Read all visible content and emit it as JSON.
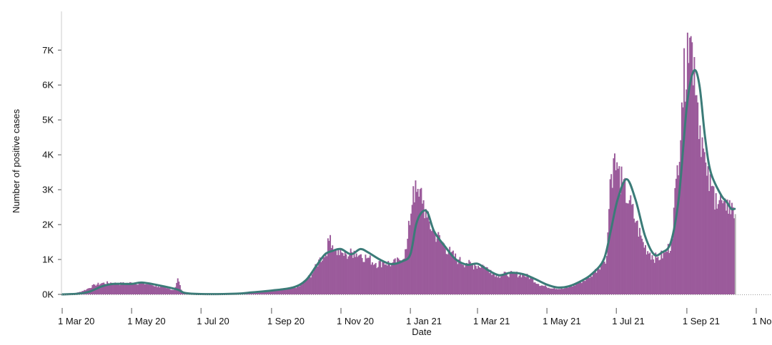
{
  "chart_data": {
    "type": "bar",
    "xlabel": "Date",
    "ylabel": "Number of positive cases",
    "x_start": "2020-03-01",
    "x_end": "2021-11-01",
    "ylim": [
      0,
      7700
    ],
    "yticks": [
      {
        "value": 0,
        "label": "0K"
      },
      {
        "value": 1000,
        "label": "1K"
      },
      {
        "value": 2000,
        "label": "2K"
      },
      {
        "value": 3000,
        "label": "3K"
      },
      {
        "value": 4000,
        "label": "4K"
      },
      {
        "value": 5000,
        "label": "5K"
      },
      {
        "value": 6000,
        "label": "6K"
      },
      {
        "value": 7000,
        "label": "7K"
      }
    ],
    "xticks": [
      {
        "date": "2020-03-01",
        "label": "1 Mar 20"
      },
      {
        "date": "2020-05-01",
        "label": "1 May 20"
      },
      {
        "date": "2020-07-01",
        "label": "1 Jul 20"
      },
      {
        "date": "2020-09-01",
        "label": "1 Sep 20"
      },
      {
        "date": "2020-11-01",
        "label": "1 Nov 20"
      },
      {
        "date": "2021-01-01",
        "label": "1 Jan 21"
      },
      {
        "date": "2021-03-01",
        "label": "1 Mar 21"
      },
      {
        "date": "2021-05-01",
        "label": "1 May 21"
      },
      {
        "date": "2021-07-01",
        "label": "1 Jul 21"
      },
      {
        "date": "2021-09-01",
        "label": "1 Sep 21"
      },
      {
        "date": "2021-11-01",
        "label": "1 No"
      }
    ],
    "colors": {
      "bars": "#9b5b9b",
      "trend": "#3b7b78",
      "last_bar": "#b4b4b4"
    },
    "series": [
      {
        "type": "bar",
        "values": [
          [
            "2020-03-01",
            0
          ],
          [
            "2020-03-08",
            20
          ],
          [
            "2020-03-15",
            60
          ],
          [
            "2020-03-22",
            150
          ],
          [
            "2020-03-29",
            280
          ],
          [
            "2020-04-05",
            330
          ],
          [
            "2020-04-12",
            340
          ],
          [
            "2020-04-19",
            310
          ],
          [
            "2020-04-26",
            330
          ],
          [
            "2020-05-03",
            340
          ],
          [
            "2020-05-10",
            320
          ],
          [
            "2020-05-17",
            290
          ],
          [
            "2020-05-24",
            230
          ],
          [
            "2020-05-31",
            180
          ],
          [
            "2020-06-07",
            130
          ],
          [
            "2020-06-10",
            460
          ],
          [
            "2020-06-14",
            50
          ],
          [
            "2020-06-21",
            20
          ],
          [
            "2020-07-01",
            10
          ],
          [
            "2020-07-15",
            10
          ],
          [
            "2020-08-01",
            30
          ],
          [
            "2020-08-15",
            50
          ],
          [
            "2020-09-01",
            120
          ],
          [
            "2020-09-15",
            180
          ],
          [
            "2020-09-25",
            230
          ],
          [
            "2020-10-01",
            420
          ],
          [
            "2020-10-08",
            700
          ],
          [
            "2020-10-12",
            1000
          ],
          [
            "2020-10-18",
            1200
          ],
          [
            "2020-10-22",
            1700
          ],
          [
            "2020-10-26",
            1300
          ],
          [
            "2020-11-01",
            1200
          ],
          [
            "2020-11-05",
            1150
          ],
          [
            "2020-11-12",
            1250
          ],
          [
            "2020-11-18",
            1150
          ],
          [
            "2020-11-25",
            1050
          ],
          [
            "2020-12-01",
            900
          ],
          [
            "2020-12-08",
            950
          ],
          [
            "2020-12-15",
            900
          ],
          [
            "2020-12-22",
            980
          ],
          [
            "2020-12-28",
            1300
          ],
          [
            "2021-01-03",
            3100
          ],
          [
            "2021-01-08",
            2800
          ],
          [
            "2021-01-10",
            3050
          ],
          [
            "2021-01-15",
            2200
          ],
          [
            "2021-01-22",
            1800
          ],
          [
            "2021-01-29",
            1500
          ],
          [
            "2021-02-05",
            1200
          ],
          [
            "2021-02-12",
            1000
          ],
          [
            "2021-02-19",
            900
          ],
          [
            "2021-02-26",
            850
          ],
          [
            "2021-03-05",
            850
          ],
          [
            "2021-03-12",
            700
          ],
          [
            "2021-03-19",
            550
          ],
          [
            "2021-03-26",
            600
          ],
          [
            "2021-04-02",
            600
          ],
          [
            "2021-04-09",
            580
          ],
          [
            "2021-04-16",
            500
          ],
          [
            "2021-04-23",
            300
          ],
          [
            "2021-04-30",
            220
          ],
          [
            "2021-05-07",
            180
          ],
          [
            "2021-05-14",
            160
          ],
          [
            "2021-05-21",
            220
          ],
          [
            "2021-05-28",
            330
          ],
          [
            "2021-06-04",
            450
          ],
          [
            "2021-06-11",
            650
          ],
          [
            "2021-06-18",
            950
          ],
          [
            "2021-06-22",
            1100
          ],
          [
            "2021-06-25",
            3300
          ],
          [
            "2021-06-28",
            3900
          ],
          [
            "2021-07-02",
            3600
          ],
          [
            "2021-07-06",
            3200
          ],
          [
            "2021-07-12",
            2700
          ],
          [
            "2021-07-18",
            2100
          ],
          [
            "2021-07-24",
            1500
          ],
          [
            "2021-07-30",
            1200
          ],
          [
            "2021-08-05",
            1050
          ],
          [
            "2021-08-12",
            1200
          ],
          [
            "2021-08-18",
            1500
          ],
          [
            "2021-08-23",
            3700
          ],
          [
            "2021-08-27",
            5500
          ],
          [
            "2021-09-01",
            7500
          ],
          [
            "2021-09-04",
            7400
          ],
          [
            "2021-09-07",
            6800
          ],
          [
            "2021-09-10",
            5500
          ],
          [
            "2021-09-14",
            4500
          ],
          [
            "2021-09-18",
            3400
          ],
          [
            "2021-09-22",
            3100
          ],
          [
            "2021-09-26",
            2900
          ],
          [
            "2021-10-01",
            2700
          ],
          [
            "2021-10-05",
            2400
          ],
          [
            "2021-10-08",
            2700
          ],
          [
            "2021-10-11",
            2500
          ],
          [
            "2021-10-13",
            2300
          ]
        ]
      },
      {
        "type": "line",
        "values": [
          [
            "2020-03-01",
            0
          ],
          [
            "2020-03-15",
            20
          ],
          [
            "2020-03-25",
            80
          ],
          [
            "2020-04-05",
            230
          ],
          [
            "2020-04-15",
            300
          ],
          [
            "2020-05-01",
            300
          ],
          [
            "2020-05-10",
            340
          ],
          [
            "2020-05-25",
            260
          ],
          [
            "2020-06-10",
            140
          ],
          [
            "2020-06-17",
            40
          ],
          [
            "2020-07-01",
            10
          ],
          [
            "2020-08-01",
            20
          ],
          [
            "2020-08-15",
            60
          ],
          [
            "2020-09-01",
            110
          ],
          [
            "2020-09-20",
            200
          ],
          [
            "2020-10-01",
            400
          ],
          [
            "2020-10-10",
            800
          ],
          [
            "2020-10-18",
            1150
          ],
          [
            "2020-10-25",
            1250
          ],
          [
            "2020-11-01",
            1300
          ],
          [
            "2020-11-10",
            1150
          ],
          [
            "2020-11-18",
            1300
          ],
          [
            "2020-11-25",
            1200
          ],
          [
            "2020-12-05",
            1000
          ],
          [
            "2020-12-15",
            870
          ],
          [
            "2020-12-25",
            950
          ],
          [
            "2021-01-01",
            1150
          ],
          [
            "2021-01-06",
            2000
          ],
          [
            "2021-01-11",
            2350
          ],
          [
            "2021-01-16",
            2350
          ],
          [
            "2021-01-22",
            1800
          ],
          [
            "2021-02-01",
            1350
          ],
          [
            "2021-02-10",
            1000
          ],
          [
            "2021-02-20",
            850
          ],
          [
            "2021-03-01",
            880
          ],
          [
            "2021-03-10",
            700
          ],
          [
            "2021-03-20",
            550
          ],
          [
            "2021-03-30",
            620
          ],
          [
            "2021-04-10",
            580
          ],
          [
            "2021-04-20",
            450
          ],
          [
            "2021-05-01",
            280
          ],
          [
            "2021-05-10",
            200
          ],
          [
            "2021-05-20",
            230
          ],
          [
            "2021-06-01",
            400
          ],
          [
            "2021-06-10",
            600
          ],
          [
            "2021-06-20",
            1000
          ],
          [
            "2021-06-26",
            1800
          ],
          [
            "2021-07-02",
            2700
          ],
          [
            "2021-07-10",
            3300
          ],
          [
            "2021-07-18",
            2700
          ],
          [
            "2021-07-26",
            1700
          ],
          [
            "2021-08-03",
            1150
          ],
          [
            "2021-08-10",
            1200
          ],
          [
            "2021-08-18",
            1500
          ],
          [
            "2021-08-25",
            2800
          ],
          [
            "2021-09-01",
            5400
          ],
          [
            "2021-09-07",
            6400
          ],
          [
            "2021-09-12",
            6000
          ],
          [
            "2021-09-17",
            4500
          ],
          [
            "2021-09-22",
            3500
          ],
          [
            "2021-10-01",
            2850
          ],
          [
            "2021-10-06",
            2650
          ],
          [
            "2021-10-10",
            2450
          ],
          [
            "2021-10-13",
            2450
          ]
        ]
      }
    ]
  }
}
